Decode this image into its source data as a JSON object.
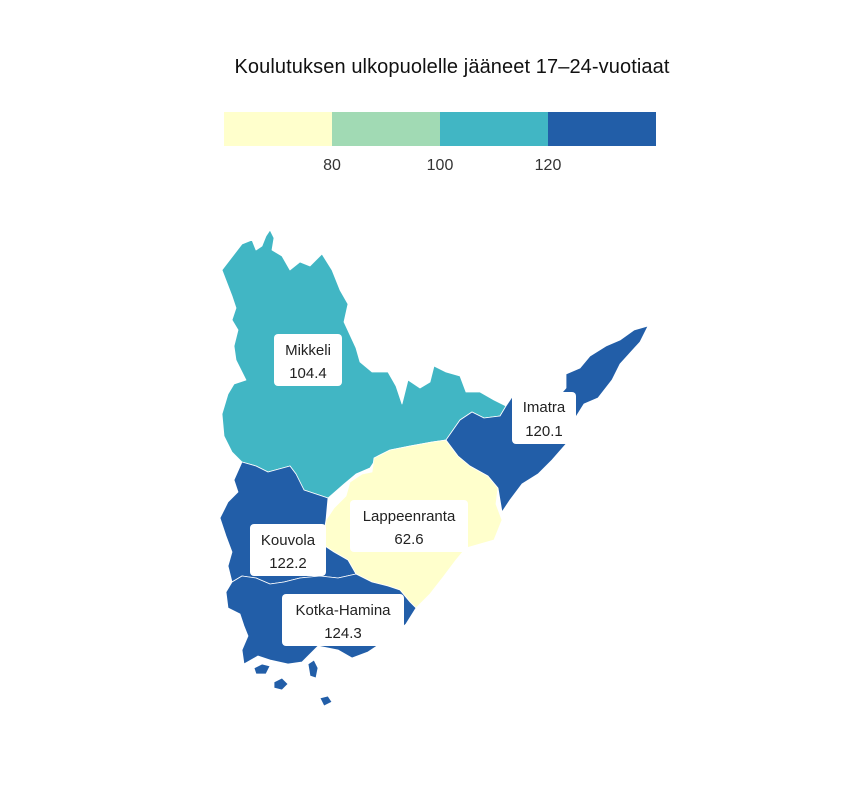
{
  "title": "Koulutuksen ulkopuolelle jääneet 17–24-vuotiaat",
  "legend": {
    "colors": [
      "#ffffcc",
      "#a1dab4",
      "#41b6c4",
      "#225ea8"
    ],
    "breaks": [
      80,
      100,
      120
    ],
    "tick_labels": [
      "80",
      "100",
      "120"
    ]
  },
  "regions": [
    {
      "name": "Mikkeli",
      "value": "104.4",
      "color": "#41b6c4"
    },
    {
      "name": "Imatra",
      "value": "120.1",
      "color": "#225ea8"
    },
    {
      "name": "Lappeenranta",
      "value": "62.6",
      "color": "#ffffcc"
    },
    {
      "name": "Kouvola",
      "value": "122.2",
      "color": "#225ea8"
    },
    {
      "name": "Kotka-Hamina",
      "value": "124.3",
      "color": "#225ea8"
    }
  ]
}
